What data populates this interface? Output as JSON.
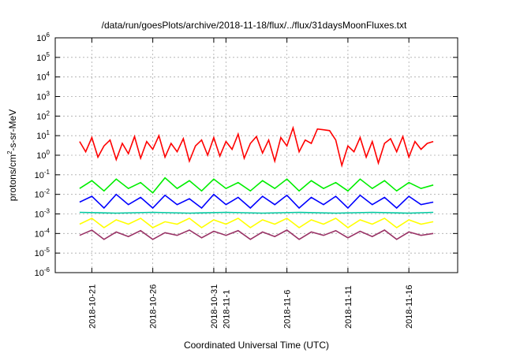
{
  "chart_data": {
    "type": "line",
    "title": "/data/run/goesPlots/archive/2018-11-18/flux/../flux/31daysMoonFluxes.txt",
    "xlabel": "Coordinated Universal Time (UTC)",
    "ylabel": "protons/cm²-s-sr-MeV",
    "ylabel_main": "protons/cm",
    "ylabel_sup": "2",
    "ylabel_tail": "-s-sr-MeV",
    "xlim": [
      "2018-10-18",
      "2018-11-20"
    ],
    "ylim": [
      1e-06,
      1000000.0
    ],
    "yscale": "log",
    "grid": true,
    "x_ticks": [
      {
        "date": "2018-10-21",
        "lines": [
          "2018-10-21"
        ]
      },
      {
        "date": "2018-10-26",
        "lines": [
          "2018-10-26"
        ]
      },
      {
        "date": "2018-10-31",
        "lines": [
          "2018-10-31"
        ]
      },
      {
        "date": "2018-11-01",
        "lines": [
          "2018-11-1"
        ]
      },
      {
        "date": "2018-11-06",
        "lines": [
          "2018-11-6"
        ]
      },
      {
        "date": "2018-11-11",
        "lines": [
          "2018-11-11"
        ]
      },
      {
        "date": "2018-11-16",
        "lines": [
          "2018-11-16"
        ]
      }
    ],
    "y_ticks": [
      {
        "value": 1e-06,
        "base": "10",
        "exp": "-6"
      },
      {
        "value": 1e-05,
        "base": "10",
        "exp": "-5"
      },
      {
        "value": 0.0001,
        "base": "10",
        "exp": "-4"
      },
      {
        "value": 0.001,
        "base": "10",
        "exp": "-3"
      },
      {
        "value": 0.01,
        "base": "10",
        "exp": "-2"
      },
      {
        "value": 0.1,
        "base": "10",
        "exp": "-1"
      },
      {
        "value": 1,
        "base": "10",
        "exp": "0"
      },
      {
        "value": 10,
        "base": "10",
        "exp": "1"
      },
      {
        "value": 100,
        "base": "10",
        "exp": "2"
      },
      {
        "value": 1000,
        "base": "10",
        "exp": "3"
      },
      {
        "value": 10000,
        "base": "10",
        "exp": "4"
      },
      {
        "value": 100000,
        "base": "10",
        "exp": "5"
      },
      {
        "value": 1000000,
        "base": "10",
        "exp": "6"
      }
    ],
    "series": [
      {
        "color": "#ff0000",
        "x": [
          "2018-10-20T00:00",
          "2018-10-20T12:00",
          "2018-10-21T00:00",
          "2018-10-21T12:00",
          "2018-10-22T00:00",
          "2018-10-22T12:00",
          "2018-10-23T00:00",
          "2018-10-23T12:00",
          "2018-10-24T00:00",
          "2018-10-24T12:00",
          "2018-10-25T00:00",
          "2018-10-25T12:00",
          "2018-10-26T00:00",
          "2018-10-26T12:00",
          "2018-10-27T00:00",
          "2018-10-27T12:00",
          "2018-10-28T00:00",
          "2018-10-28T12:00",
          "2018-10-29T00:00",
          "2018-10-29T12:00",
          "2018-10-30T00:00",
          "2018-10-30T12:00",
          "2018-10-31T00:00",
          "2018-10-31T12:00",
          "2018-11-01T00:00",
          "2018-11-01T12:00",
          "2018-11-02T00:00",
          "2018-11-02T12:00",
          "2018-11-03T00:00",
          "2018-11-03T12:00",
          "2018-11-04T00:00",
          "2018-11-04T12:00",
          "2018-11-05T00:00",
          "2018-11-05T12:00",
          "2018-11-06T00:00",
          "2018-11-06T12:00",
          "2018-11-07T00:00",
          "2018-11-07T12:00",
          "2018-11-08T00:00",
          "2018-11-08T12:00",
          "2018-11-09T00:00",
          "2018-11-09T12:00",
          "2018-11-10T00:00",
          "2018-11-10T12:00",
          "2018-11-11T00:00",
          "2018-11-11T12:00",
          "2018-11-12T00:00",
          "2018-11-12T12:00",
          "2018-11-13T00:00",
          "2018-11-13T12:00",
          "2018-11-14T00:00",
          "2018-11-14T12:00",
          "2018-11-15T00:00",
          "2018-11-15T12:00",
          "2018-11-16T00:00",
          "2018-11-16T12:00",
          "2018-11-17T00:00",
          "2018-11-17T12:00",
          "2018-11-18T00:00"
        ],
        "y": [
          5,
          1.5,
          8,
          0.8,
          3,
          6,
          0.6,
          4,
          1.2,
          9,
          0.7,
          5,
          2,
          10,
          0.8,
          4,
          1.5,
          7,
          0.5,
          3,
          6,
          1,
          8,
          0.9,
          5,
          2,
          12,
          0.7,
          4,
          9,
          1.3,
          6,
          0.5,
          8,
          3,
          25,
          1.5,
          6,
          4,
          22,
          20,
          18,
          6,
          0.3,
          3,
          1.5,
          8,
          0.8,
          5,
          0.4,
          4,
          7,
          1.5,
          9,
          0.8,
          5,
          2,
          4,
          5
        ]
      },
      {
        "color": "#00ee00",
        "x": [
          "2018-10-20T00:00",
          "2018-10-21T00:00",
          "2018-10-22T00:00",
          "2018-10-23T00:00",
          "2018-10-24T00:00",
          "2018-10-25T00:00",
          "2018-10-26T00:00",
          "2018-10-27T00:00",
          "2018-10-28T00:00",
          "2018-10-29T00:00",
          "2018-10-30T00:00",
          "2018-10-31T00:00",
          "2018-11-01T00:00",
          "2018-11-02T00:00",
          "2018-11-03T00:00",
          "2018-11-04T00:00",
          "2018-11-05T00:00",
          "2018-11-06T00:00",
          "2018-11-07T00:00",
          "2018-11-08T00:00",
          "2018-11-09T00:00",
          "2018-11-10T00:00",
          "2018-11-11T00:00",
          "2018-11-12T00:00",
          "2018-11-13T00:00",
          "2018-11-14T00:00",
          "2018-11-15T00:00",
          "2018-11-16T00:00",
          "2018-11-17T00:00",
          "2018-11-18T00:00"
        ],
        "y": [
          0.02,
          0.05,
          0.015,
          0.06,
          0.02,
          0.04,
          0.012,
          0.07,
          0.02,
          0.05,
          0.015,
          0.06,
          0.02,
          0.04,
          0.015,
          0.05,
          0.02,
          0.06,
          0.015,
          0.05,
          0.02,
          0.04,
          0.015,
          0.06,
          0.02,
          0.05,
          0.015,
          0.04,
          0.02,
          0.03
        ]
      },
      {
        "color": "#0000ff",
        "x": [
          "2018-10-20T00:00",
          "2018-10-21T00:00",
          "2018-10-22T00:00",
          "2018-10-23T00:00",
          "2018-10-24T00:00",
          "2018-10-25T00:00",
          "2018-10-26T00:00",
          "2018-10-27T00:00",
          "2018-10-28T00:00",
          "2018-10-29T00:00",
          "2018-10-30T00:00",
          "2018-10-31T00:00",
          "2018-11-01T00:00",
          "2018-11-02T00:00",
          "2018-11-03T00:00",
          "2018-11-04T00:00",
          "2018-11-05T00:00",
          "2018-11-06T00:00",
          "2018-11-07T00:00",
          "2018-11-08T00:00",
          "2018-11-09T00:00",
          "2018-11-10T00:00",
          "2018-11-11T00:00",
          "2018-11-12T00:00",
          "2018-11-13T00:00",
          "2018-11-14T00:00",
          "2018-11-15T00:00",
          "2018-11-16T00:00",
          "2018-11-17T00:00",
          "2018-11-18T00:00"
        ],
        "y": [
          0.004,
          0.008,
          0.002,
          0.01,
          0.003,
          0.007,
          0.002,
          0.009,
          0.003,
          0.006,
          0.002,
          0.01,
          0.003,
          0.007,
          0.002,
          0.008,
          0.003,
          0.009,
          0.002,
          0.007,
          0.003,
          0.008,
          0.002,
          0.009,
          0.003,
          0.007,
          0.002,
          0.008,
          0.003,
          0.004
        ]
      },
      {
        "color": "#00c8a0",
        "x": [
          "2018-10-20T00:00",
          "2018-10-23T00:00",
          "2018-10-26T00:00",
          "2018-10-29T00:00",
          "2018-11-01T00:00",
          "2018-11-04T00:00",
          "2018-11-07T00:00",
          "2018-11-10T00:00",
          "2018-11-13T00:00",
          "2018-11-16T00:00",
          "2018-11-18T00:00"
        ],
        "y": [
          0.0012,
          0.0011,
          0.0012,
          0.0011,
          0.0012,
          0.0011,
          0.0012,
          0.0011,
          0.0012,
          0.0011,
          0.0012
        ]
      },
      {
        "color": "#ffff00",
        "x": [
          "2018-10-20T00:00",
          "2018-10-21T00:00",
          "2018-10-22T00:00",
          "2018-10-23T00:00",
          "2018-10-24T00:00",
          "2018-10-25T00:00",
          "2018-10-26T00:00",
          "2018-10-27T00:00",
          "2018-10-28T00:00",
          "2018-10-29T00:00",
          "2018-10-30T00:00",
          "2018-10-31T00:00",
          "2018-11-01T00:00",
          "2018-11-02T00:00",
          "2018-11-03T00:00",
          "2018-11-04T00:00",
          "2018-11-05T00:00",
          "2018-11-06T00:00",
          "2018-11-07T00:00",
          "2018-11-08T00:00",
          "2018-11-09T00:00",
          "2018-11-10T00:00",
          "2018-11-11T00:00",
          "2018-11-12T00:00",
          "2018-11-13T00:00",
          "2018-11-14T00:00",
          "2018-11-15T00:00",
          "2018-11-16T00:00",
          "2018-11-17T00:00",
          "2018-11-18T00:00"
        ],
        "y": [
          0.0003,
          0.0006,
          0.0002,
          0.0005,
          0.0003,
          0.0006,
          0.0002,
          0.0004,
          0.0003,
          0.0006,
          0.0002,
          0.0005,
          0.0003,
          0.0006,
          0.0002,
          0.0005,
          0.0003,
          0.0006,
          0.0002,
          0.0005,
          0.0003,
          0.0006,
          0.0002,
          0.0005,
          0.0003,
          0.0006,
          0.0002,
          0.0005,
          0.0003,
          0.0004
        ]
      },
      {
        "color": "#993366",
        "x": [
          "2018-10-20T00:00",
          "2018-10-21T00:00",
          "2018-10-22T00:00",
          "2018-10-23T00:00",
          "2018-10-24T00:00",
          "2018-10-25T00:00",
          "2018-10-26T00:00",
          "2018-10-27T00:00",
          "2018-10-28T00:00",
          "2018-10-29T00:00",
          "2018-10-30T00:00",
          "2018-10-31T00:00",
          "2018-11-01T00:00",
          "2018-11-02T00:00",
          "2018-11-03T00:00",
          "2018-11-04T00:00",
          "2018-11-05T00:00",
          "2018-11-06T00:00",
          "2018-11-07T00:00",
          "2018-11-08T00:00",
          "2018-11-09T00:00",
          "2018-11-10T00:00",
          "2018-11-11T00:00",
          "2018-11-12T00:00",
          "2018-11-13T00:00",
          "2018-11-14T00:00",
          "2018-11-15T00:00",
          "2018-11-16T00:00",
          "2018-11-17T00:00",
          "2018-11-18T00:00"
        ],
        "y": [
          8e-05,
          0.00015,
          5e-05,
          0.00012,
          7e-05,
          0.00014,
          5e-05,
          0.00011,
          8e-05,
          0.00015,
          6e-05,
          0.00013,
          8e-05,
          0.00014,
          5e-05,
          0.00012,
          7e-05,
          0.00015,
          5e-05,
          0.00012,
          8e-05,
          0.00014,
          6e-05,
          0.00013,
          7e-05,
          0.00015,
          5e-05,
          0.00012,
          8e-05,
          0.0001
        ]
      }
    ]
  }
}
